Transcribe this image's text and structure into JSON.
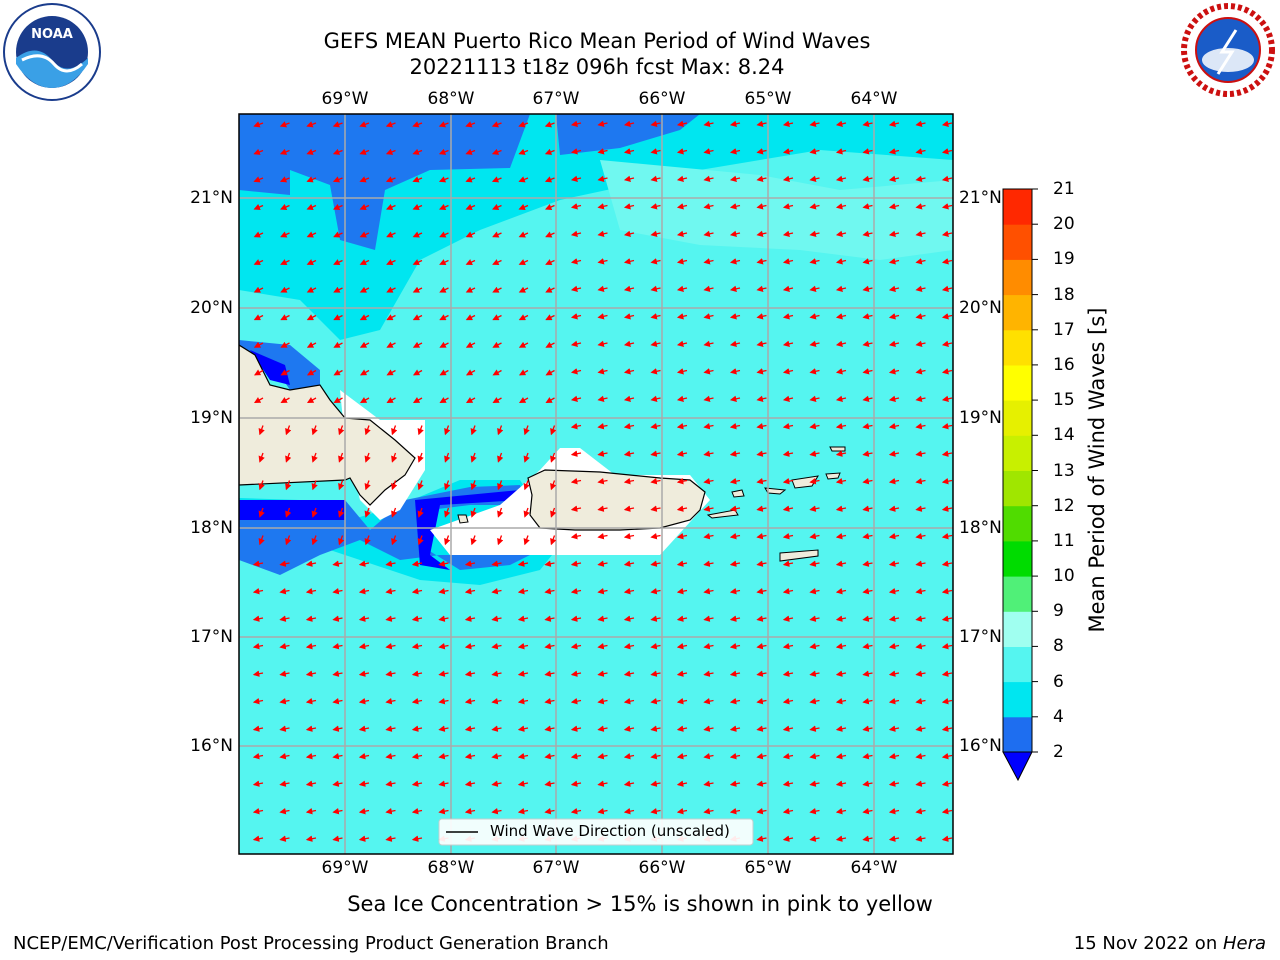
{
  "title": {
    "line1": "GEFS MEAN Puerto Rico Mean Period of Wind Waves",
    "line2": "20221113 t18z 096h fcst   Max: 8.24"
  },
  "logos": {
    "left": {
      "icon": "noaa-logo-icon",
      "text": "NOAA"
    },
    "right": {
      "icon": "nws-logo-icon",
      "text": "NATIONAL WEATHER SERVICE"
    }
  },
  "map": {
    "lon_labels": [
      "69°W",
      "68°W",
      "67°W",
      "66°W",
      "65°W",
      "64°W"
    ],
    "lat_labels": [
      "21°N",
      "20°N",
      "19°N",
      "18°N",
      "17°N",
      "16°N"
    ],
    "legend_label": "Wind Wave Direction (unscaled)",
    "vector_color": "#ff0000",
    "land_color": "#efecdc"
  },
  "colorbar": {
    "label": "Mean Period of Wind Waves [s]",
    "ticks": [
      "2",
      "4",
      "6",
      "8",
      "9",
      "10",
      "11",
      "12",
      "13",
      "14",
      "15",
      "16",
      "17",
      "18",
      "19",
      "20",
      "21"
    ],
    "colors": [
      "#1e6ef0",
      "#00e6f0",
      "#55f5f0",
      "#a0fff0",
      "#50f078",
      "#00dc00",
      "#50dc00",
      "#a0e600",
      "#c8f000",
      "#e6f000",
      "#ffff00",
      "#ffe000",
      "#ffb400",
      "#ff8c00",
      "#ff5000",
      "#ff2800",
      "#ff0000"
    ],
    "extend_color": "#0000ff"
  },
  "note": "Sea Ice Concentration > 15% is shown in pink to yellow",
  "footer": {
    "left": "NCEP/EMC/Verification Post Processing Product Generation Branch",
    "right_prefix": "15 Nov 2022 on ",
    "right_machine": "Hera"
  }
}
